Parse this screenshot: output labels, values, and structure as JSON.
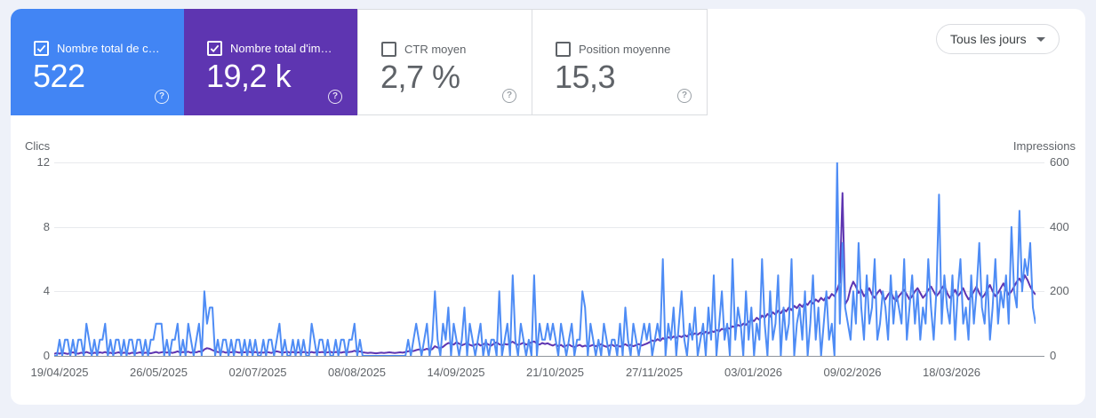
{
  "cards": [
    {
      "label": "Nombre total de c…",
      "value": "522",
      "checked": true,
      "color": "#4285f4"
    },
    {
      "label": "Nombre total d'im…",
      "value": "19,2 k",
      "checked": true,
      "color": "#5e35b1"
    },
    {
      "label": "CTR moyen",
      "value": "2,7 %",
      "checked": false,
      "color": null
    },
    {
      "label": "Position moyenne",
      "value": "15,3",
      "checked": false,
      "color": null
    }
  ],
  "icons": {
    "help_glyph": "?"
  },
  "filter_button": {
    "label": "Tous les jours"
  },
  "chart_data": {
    "type": "line",
    "grid": true,
    "left_axis": {
      "title": "Clics",
      "ticks": [
        "12",
        "8",
        "4",
        "0"
      ],
      "max": 12
    },
    "right_axis": {
      "title": "Impressions",
      "ticks": [
        "600",
        "400",
        "200",
        "0"
      ],
      "max": 600
    },
    "x_ticks": [
      "19/04/2025",
      "26/05/2025",
      "02/07/2025",
      "08/08/2025",
      "14/09/2025",
      "21/10/2025",
      "27/11/2025",
      "03/01/2026",
      "09/02/2026",
      "18/03/2026"
    ],
    "series": [
      {
        "name": "Impressions",
        "axis": "right",
        "color": "#5e35b1",
        "values": [
          6,
          9,
          7,
          10,
          8,
          6,
          9,
          11,
          8,
          7,
          10,
          8,
          12,
          9,
          7,
          10,
          8,
          11,
          9,
          12,
          8,
          10,
          7,
          9,
          11,
          8,
          10,
          9,
          7,
          10,
          8,
          9,
          11,
          8,
          10,
          9,
          8,
          10,
          12,
          9,
          11,
          13,
          10,
          12,
          9,
          11,
          14,
          10,
          12,
          11,
          13,
          10,
          12,
          11,
          14,
          12,
          20,
          24,
          22,
          18,
          14,
          12,
          11,
          13,
          10,
          12,
          11,
          13,
          12,
          10,
          12,
          11,
          13,
          12,
          10,
          12,
          9,
          11,
          10,
          12,
          11,
          9,
          12,
          14,
          12,
          10,
          11,
          13,
          10,
          12,
          9,
          11,
          10,
          12,
          11,
          9,
          12,
          10,
          13,
          11,
          12,
          10,
          11,
          13,
          10,
          12,
          11,
          10,
          12,
          11,
          12,
          13,
          16,
          12,
          14,
          11,
          10,
          9,
          10,
          9,
          8,
          9,
          10,
          9,
          10,
          11,
          10,
          9,
          10,
          11,
          10,
          12,
          14,
          16,
          15,
          18,
          20,
          17,
          19,
          22,
          18,
          21,
          30,
          26,
          24,
          28,
          35,
          40,
          38,
          35,
          42,
          38,
          33,
          36,
          40,
          34,
          31,
          35,
          38,
          32,
          36,
          40,
          35,
          32,
          38,
          42,
          36,
          33,
          37,
          35,
          40,
          44,
          38,
          34,
          37,
          41,
          35,
          38,
          42,
          45,
          38,
          35,
          40,
          37,
          39,
          35,
          32,
          36,
          30,
          34,
          28,
          32,
          35,
          30,
          27,
          31,
          34,
          29,
          32,
          28,
          31,
          34,
          30,
          33,
          36,
          31,
          28,
          32,
          35,
          30,
          33,
          29,
          32,
          36,
          31,
          34,
          30,
          33,
          37,
          32,
          35,
          38,
          42,
          48,
          45,
          52,
          47,
          55,
          50,
          58,
          54,
          60,
          56,
          62,
          58,
          65,
          60,
          68,
          64,
          70,
          66,
          72,
          68,
          75,
          70,
          78,
          74,
          80,
          76,
          84,
          80,
          88,
          84,
          92,
          88,
          96,
          92,
          100,
          96,
          105,
          112,
          108,
          118,
          112,
          125,
          118,
          130,
          122,
          135,
          128,
          140,
          132,
          145,
          138,
          150,
          142,
          155,
          148,
          160,
          152,
          165,
          158,
          170,
          162,
          175,
          168,
          180,
          172,
          185,
          178,
          192,
          185,
          205,
          230,
          505,
          160,
          175,
          210,
          230,
          215,
          195,
          205,
          185,
          195,
          210,
          190,
          180,
          195,
          205,
          185,
          175,
          190,
          200,
          180,
          170,
          185,
          195,
          205,
          190,
          175,
          185,
          200,
          210,
          195,
          180,
          190,
          205,
          215,
          200,
          185,
          195,
          210,
          220,
          195,
          180,
          190,
          205,
          185,
          195,
          210,
          190,
          175,
          185,
          200,
          215,
          195,
          180,
          190,
          205,
          220,
          200,
          185,
          195,
          210,
          225,
          205,
          190,
          200,
          215,
          230,
          240,
          225,
          250,
          235,
          215,
          200,
          190
        ]
      },
      {
        "name": "Clics",
        "axis": "left",
        "color": "#4e8cf5",
        "values": [
          0,
          0,
          1,
          0,
          1,
          1,
          0,
          1,
          0,
          1,
          1,
          0,
          2,
          1,
          0,
          1,
          0,
          1,
          1,
          2,
          0,
          1,
          0,
          1,
          1,
          0,
          1,
          0,
          1,
          1,
          0,
          1,
          1,
          0,
          1,
          0,
          1,
          1,
          2,
          2,
          2,
          0,
          1,
          0,
          1,
          1,
          2,
          0,
          1,
          0,
          2,
          1,
          0,
          1,
          2,
          0,
          4,
          2,
          3,
          3,
          0,
          1,
          0,
          1,
          1,
          0,
          1,
          0,
          1,
          1,
          0,
          1,
          0,
          1,
          0,
          1,
          0,
          0,
          1,
          0,
          1,
          1,
          0,
          1,
          2,
          0,
          1,
          0,
          0,
          1,
          0,
          1,
          0,
          1,
          0,
          0,
          2,
          1,
          0,
          1,
          1,
          0,
          1,
          0,
          0,
          1,
          0,
          1,
          1,
          0,
          1,
          1,
          2,
          0,
          1,
          0,
          0,
          0,
          0,
          0,
          0,
          0,
          0,
          0,
          0,
          0,
          0,
          0,
          0,
          0,
          0,
          0,
          1,
          0,
          1,
          2,
          1,
          0,
          1,
          2,
          0,
          1,
          4,
          1,
          0,
          2,
          1,
          3,
          0,
          2,
          1,
          0,
          1,
          3,
          0,
          2,
          1,
          0,
          1,
          2,
          0,
          1,
          0,
          1,
          1,
          0,
          4,
          0,
          1,
          2,
          0,
          5,
          1,
          0,
          2,
          1,
          0,
          1,
          0,
          5,
          0,
          2,
          1,
          1,
          2,
          1,
          2,
          1,
          0,
          2,
          1,
          0,
          1,
          2,
          0,
          1,
          1,
          4,
          3,
          0,
          2,
          1,
          0,
          1,
          0,
          2,
          1,
          0,
          1,
          1,
          0,
          2,
          0,
          3,
          1,
          0,
          2,
          1,
          0,
          1,
          2,
          1,
          2,
          0,
          1,
          2,
          1,
          6,
          0,
          2,
          1,
          3,
          0,
          2,
          4,
          1,
          0,
          2,
          1,
          3,
          0,
          1,
          2,
          0,
          3,
          1,
          5,
          0,
          2,
          4,
          1,
          2,
          0,
          6,
          1,
          3,
          2,
          0,
          4,
          1,
          3,
          0,
          2,
          1,
          6,
          2,
          0,
          4,
          1,
          2,
          5,
          0,
          3,
          1,
          2,
          6,
          0,
          2,
          3,
          1,
          4,
          0,
          2,
          5,
          1,
          3,
          0,
          2,
          4,
          1,
          2,
          0,
          12,
          2,
          7,
          3,
          2,
          1,
          4,
          2,
          7,
          3,
          1,
          5,
          2,
          3,
          6,
          1,
          2,
          4,
          3,
          1,
          5,
          2,
          4,
          3,
          2,
          6,
          1,
          3,
          5,
          2,
          4,
          1,
          3,
          2,
          6,
          3,
          1,
          4,
          10,
          2,
          5,
          3,
          2,
          5,
          1,
          4,
          6,
          2,
          3,
          1,
          5,
          2,
          4,
          7,
          3,
          2,
          5,
          1,
          3,
          6,
          2,
          4,
          3,
          5,
          2,
          8,
          4,
          3,
          9,
          4,
          6,
          5,
          7,
          3,
          2
        ]
      }
    ]
  }
}
